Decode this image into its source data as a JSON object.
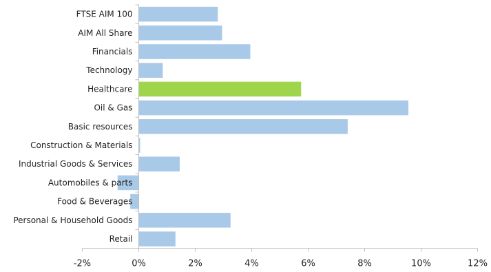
{
  "chart_data": {
    "type": "bar",
    "orientation": "horizontal",
    "categories": [
      "FTSE AIM 100",
      "AIM All Share",
      "Financials",
      "Technology",
      "Healthcare",
      "Oil & Gas",
      "Basic resources",
      "Construction & Materials",
      "Industrial Goods & Services",
      "Automobiles & parts",
      "Food & Beverages",
      "Personal & Household Goods",
      "Retail"
    ],
    "values": [
      2.8,
      2.95,
      3.95,
      0.85,
      5.75,
      9.55,
      7.4,
      0.05,
      1.45,
      -0.75,
      -0.3,
      3.25,
      1.3
    ],
    "highlight": "Healthcare",
    "xlim": [
      -2,
      12
    ],
    "xticks": [
      "-2%",
      "0%",
      "2%",
      "4%",
      "6%",
      "8%",
      "10%",
      "12%"
    ],
    "xtick_values": [
      -2,
      0,
      2,
      4,
      6,
      8,
      10,
      12
    ],
    "bar_color": "#a9c9e8",
    "highlight_color": "#9ed54a",
    "axis_color": "#bfbfbf",
    "grid": false,
    "legend": false
  }
}
